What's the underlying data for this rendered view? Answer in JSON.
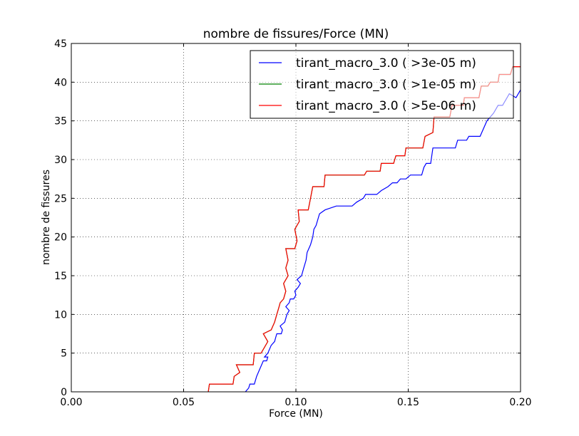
{
  "chart_data": {
    "type": "line",
    "title": "nombre de fissures/Force (MN)",
    "xlabel": "Force (MN)",
    "ylabel": "nombre de fissures",
    "xlim": [
      0.0,
      0.2
    ],
    "ylim": [
      0,
      45
    ],
    "xticks": [
      "0.00",
      "0.05",
      "0.10",
      "0.15",
      "0.20"
    ],
    "yticks": [
      "0",
      "5",
      "10",
      "15",
      "20",
      "25",
      "30",
      "35",
      "40",
      "45"
    ],
    "grid": true,
    "legend_position": "top-right",
    "series": [
      {
        "name": "tirant_macro_3.0 ( >3e-05 m)",
        "color": "#0000ff",
        "points": [
          [
            0.0775,
            0
          ],
          [
            0.079,
            0.5
          ],
          [
            0.0795,
            1
          ],
          [
            0.0815,
            1
          ],
          [
            0.0825,
            2
          ],
          [
            0.084,
            3
          ],
          [
            0.0855,
            4
          ],
          [
            0.087,
            4
          ],
          [
            0.0875,
            4.5
          ],
          [
            0.086,
            4.5
          ],
          [
            0.0875,
            5
          ],
          [
            0.089,
            6
          ],
          [
            0.0905,
            6.5
          ],
          [
            0.091,
            7
          ],
          [
            0.0915,
            7.5
          ],
          [
            0.0935,
            7.5
          ],
          [
            0.094,
            8
          ],
          [
            0.093,
            8.5
          ],
          [
            0.095,
            9
          ],
          [
            0.096,
            10
          ],
          [
            0.097,
            10.5
          ],
          [
            0.0955,
            11
          ],
          [
            0.097,
            11.5
          ],
          [
            0.0975,
            12
          ],
          [
            0.099,
            12
          ],
          [
            0.1,
            12.5
          ],
          [
            0.0995,
            13
          ],
          [
            0.101,
            13.5
          ],
          [
            0.102,
            14
          ],
          [
            0.1005,
            14.5
          ],
          [
            0.1025,
            15
          ],
          [
            0.1035,
            16
          ],
          [
            0.1045,
            17
          ],
          [
            0.105,
            18
          ],
          [
            0.1065,
            19
          ],
          [
            0.1075,
            20
          ],
          [
            0.108,
            21
          ],
          [
            0.109,
            21.5
          ],
          [
            0.11,
            22.5
          ],
          [
            0.1105,
            23
          ],
          [
            0.113,
            23.5
          ],
          [
            0.118,
            24
          ],
          [
            0.125,
            24
          ],
          [
            0.127,
            24.5
          ],
          [
            0.13,
            25
          ],
          [
            0.131,
            25.5
          ],
          [
            0.136,
            25.5
          ],
          [
            0.138,
            26
          ],
          [
            0.141,
            26.5
          ],
          [
            0.143,
            27
          ],
          [
            0.145,
            27
          ],
          [
            0.1465,
            27.5
          ],
          [
            0.149,
            27.5
          ],
          [
            0.151,
            28
          ],
          [
            0.156,
            28
          ],
          [
            0.157,
            29
          ],
          [
            0.158,
            29.5
          ],
          [
            0.16,
            29.5
          ],
          [
            0.161,
            31.5
          ],
          [
            0.171,
            31.5
          ],
          [
            0.172,
            32.5
          ],
          [
            0.176,
            32.5
          ],
          [
            0.177,
            33
          ],
          [
            0.182,
            33
          ],
          [
            0.185,
            35
          ],
          [
            0.188,
            36
          ],
          [
            0.19,
            37
          ],
          [
            0.192,
            37
          ],
          [
            0.195,
            38.5
          ],
          [
            0.198,
            38
          ],
          [
            0.2,
            39
          ]
        ]
      },
      {
        "name": "tirant_macro_3.0 ( >1e-05 m)",
        "color": "#008000",
        "points": [
          [
            0.061,
            0
          ],
          [
            0.0615,
            1
          ],
          [
            0.072,
            1
          ],
          [
            0.0725,
            2
          ],
          [
            0.075,
            2.5
          ],
          [
            0.0735,
            3.5
          ],
          [
            0.081,
            3.5
          ],
          [
            0.0815,
            5
          ],
          [
            0.0845,
            5
          ],
          [
            0.0875,
            6.5
          ],
          [
            0.0855,
            7.5
          ],
          [
            0.089,
            8
          ],
          [
            0.0905,
            9
          ],
          [
            0.0915,
            10
          ],
          [
            0.0925,
            11
          ],
          [
            0.093,
            11.5
          ],
          [
            0.0945,
            12
          ],
          [
            0.0955,
            13
          ],
          [
            0.0945,
            14
          ],
          [
            0.0965,
            15
          ],
          [
            0.0955,
            16
          ],
          [
            0.0965,
            17
          ],
          [
            0.0955,
            18.5
          ],
          [
            0.0995,
            18.5
          ],
          [
            0.1005,
            19.5
          ],
          [
            0.0995,
            21
          ],
          [
            0.1015,
            22
          ],
          [
            0.101,
            23.5
          ],
          [
            0.1055,
            23.5
          ],
          [
            0.1065,
            25
          ],
          [
            0.1075,
            26.5
          ],
          [
            0.1125,
            26.5
          ],
          [
            0.113,
            28
          ],
          [
            0.1305,
            28
          ],
          [
            0.1315,
            28.5
          ],
          [
            0.1375,
            28.5
          ],
          [
            0.138,
            29.5
          ],
          [
            0.1435,
            29.5
          ],
          [
            0.1445,
            30.5
          ],
          [
            0.1485,
            30.5
          ],
          [
            0.149,
            31.5
          ],
          [
            0.1565,
            31.5
          ],
          [
            0.1575,
            33
          ],
          [
            0.161,
            33.5
          ],
          [
            0.1615,
            35.5
          ],
          [
            0.1685,
            35.5
          ],
          [
            0.1695,
            37
          ],
          [
            0.1745,
            37
          ],
          [
            0.175,
            38
          ],
          [
            0.1815,
            38
          ],
          [
            0.1825,
            39.5
          ],
          [
            0.1855,
            39.5
          ],
          [
            0.1865,
            40
          ],
          [
            0.19,
            40
          ],
          [
            0.1905,
            41
          ],
          [
            0.1955,
            41
          ],
          [
            0.1965,
            42
          ],
          [
            0.2,
            42
          ]
        ]
      },
      {
        "name": "tirant_macro_3.0 ( >5e-06 m)",
        "color": "#ff0000",
        "points": [
          [
            0.061,
            0
          ],
          [
            0.0615,
            1
          ],
          [
            0.072,
            1
          ],
          [
            0.0725,
            2
          ],
          [
            0.075,
            2.5
          ],
          [
            0.0735,
            3.5
          ],
          [
            0.081,
            3.5
          ],
          [
            0.0815,
            5
          ],
          [
            0.0845,
            5
          ],
          [
            0.0875,
            6.5
          ],
          [
            0.0855,
            7.5
          ],
          [
            0.089,
            8
          ],
          [
            0.0905,
            9
          ],
          [
            0.0915,
            10
          ],
          [
            0.0925,
            11
          ],
          [
            0.093,
            11.5
          ],
          [
            0.0945,
            12
          ],
          [
            0.0955,
            13
          ],
          [
            0.0945,
            14
          ],
          [
            0.0965,
            15
          ],
          [
            0.0955,
            16
          ],
          [
            0.0965,
            17
          ],
          [
            0.0955,
            18.5
          ],
          [
            0.0995,
            18.5
          ],
          [
            0.1005,
            19.5
          ],
          [
            0.0995,
            21
          ],
          [
            0.1015,
            22
          ],
          [
            0.101,
            23.5
          ],
          [
            0.1055,
            23.5
          ],
          [
            0.1065,
            25
          ],
          [
            0.1075,
            26.5
          ],
          [
            0.1125,
            26.5
          ],
          [
            0.113,
            28
          ],
          [
            0.1305,
            28
          ],
          [
            0.1315,
            28.5
          ],
          [
            0.1375,
            28.5
          ],
          [
            0.138,
            29.5
          ],
          [
            0.1435,
            29.5
          ],
          [
            0.1445,
            30.5
          ],
          [
            0.1485,
            30.5
          ],
          [
            0.149,
            31.5
          ],
          [
            0.1565,
            31.5
          ],
          [
            0.1575,
            33
          ],
          [
            0.161,
            33.5
          ],
          [
            0.1615,
            35.5
          ],
          [
            0.1685,
            35.5
          ],
          [
            0.1695,
            37
          ],
          [
            0.1745,
            37
          ],
          [
            0.175,
            38
          ],
          [
            0.1815,
            38
          ],
          [
            0.1825,
            39.5
          ],
          [
            0.1855,
            39.5
          ],
          [
            0.1865,
            40
          ],
          [
            0.19,
            40
          ],
          [
            0.1905,
            41
          ],
          [
            0.1955,
            41
          ],
          [
            0.1965,
            42
          ],
          [
            0.2,
            42
          ]
        ]
      }
    ]
  }
}
